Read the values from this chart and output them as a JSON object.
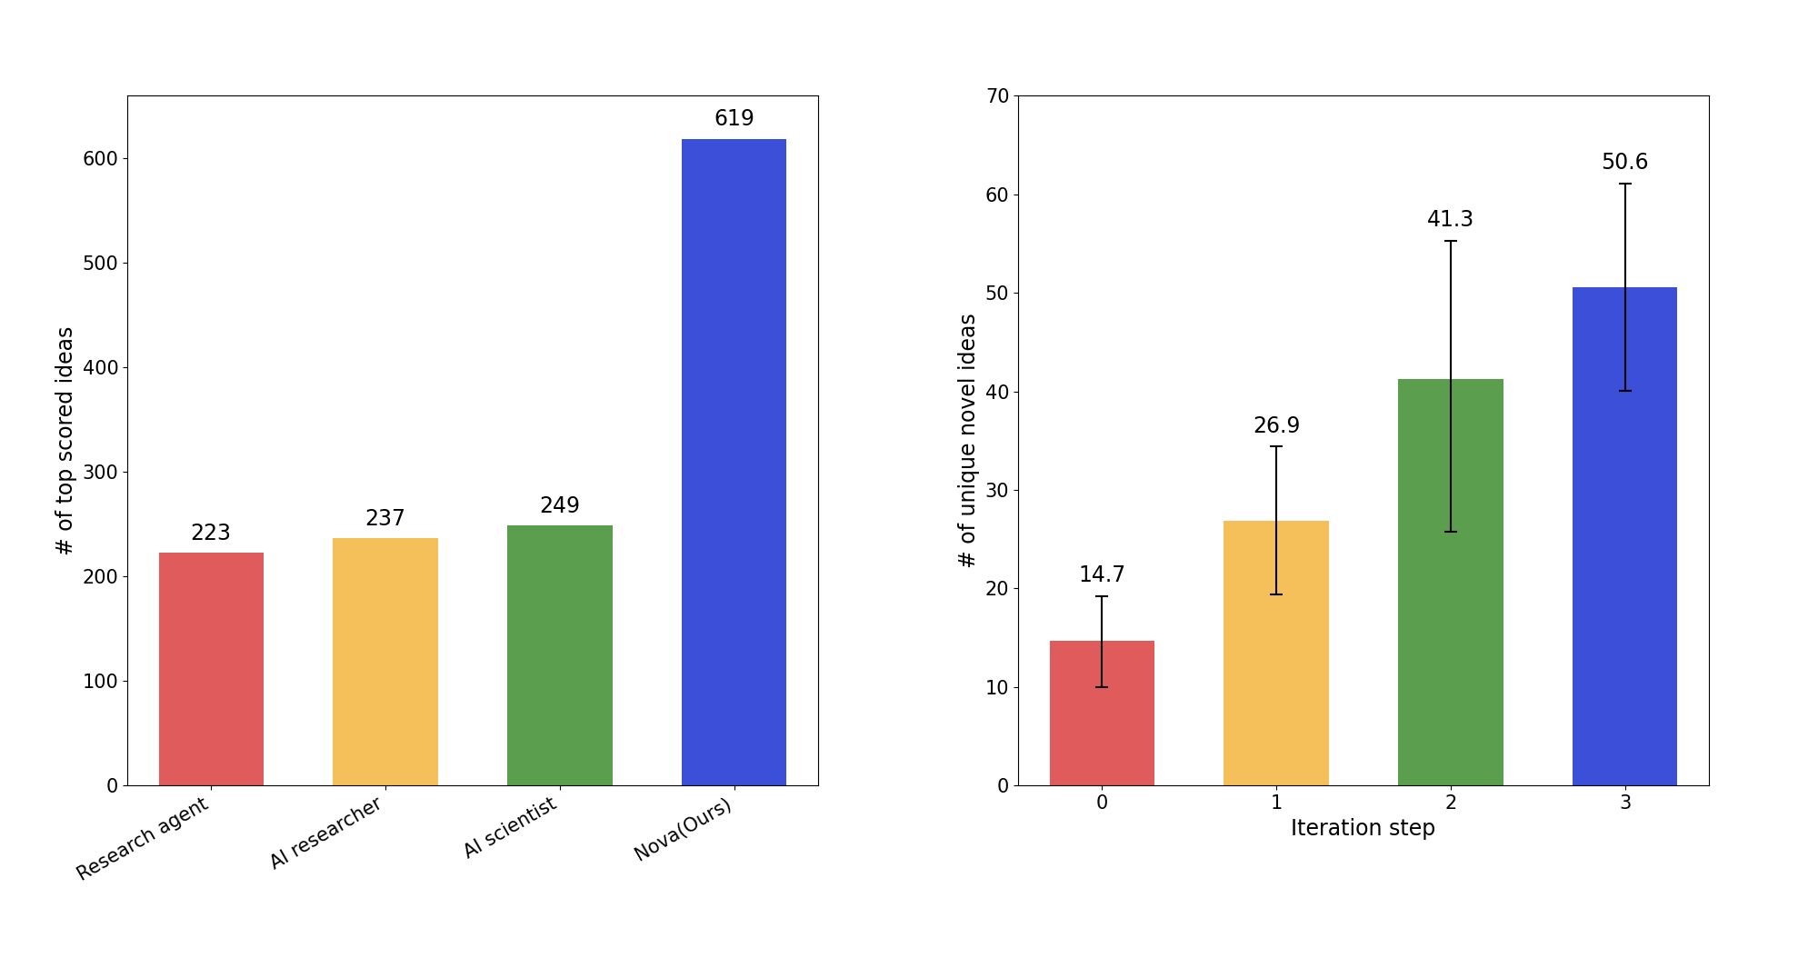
{
  "left_chart": {
    "categories": [
      "Research agent",
      "AI researcher",
      "AI scientist",
      "Nova(Ours)"
    ],
    "values": [
      223,
      237,
      249,
      619
    ],
    "colors": [
      "#E05C5C",
      "#F5C05A",
      "#5A9E4E",
      "#3B4FD9"
    ],
    "ylabel": "# of top scored ideas",
    "ylim": [
      0,
      660
    ]
  },
  "right_chart": {
    "categories": [
      "0",
      "1",
      "2",
      "3"
    ],
    "values": [
      14.7,
      26.9,
      41.3,
      50.6
    ],
    "errors_upper": [
      4.5,
      7.5,
      14.0,
      10.5
    ],
    "errors_lower": [
      4.7,
      7.5,
      15.5,
      10.5
    ],
    "colors": [
      "#E05C5C",
      "#F5C05A",
      "#5A9E4E",
      "#3B4FD9"
    ],
    "xlabel": "Iteration step",
    "ylabel": "# of unique novel ideas",
    "ylim": [
      0,
      70
    ]
  },
  "label_fontsize": 17,
  "tick_fontsize": 15,
  "value_fontsize": 17,
  "background_color": "#FFFFFF",
  "figure_background": "#FFFFFF"
}
